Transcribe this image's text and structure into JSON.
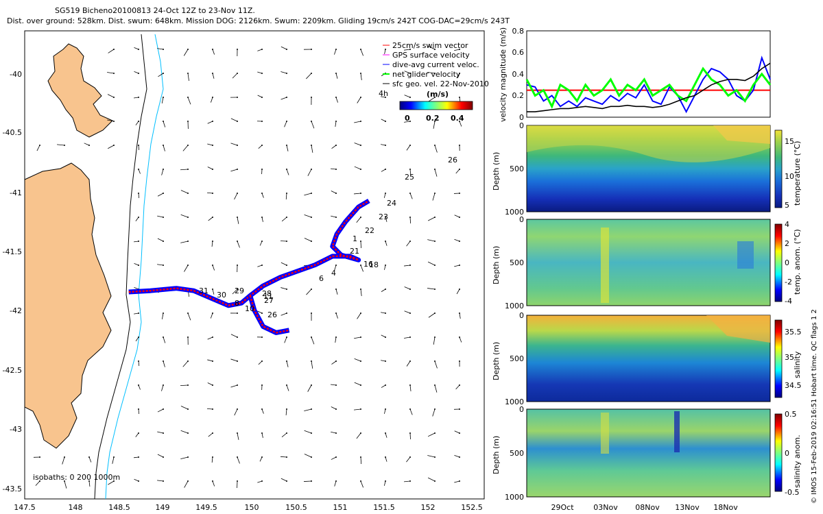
{
  "header": {
    "line1": "SG519 Bicheno20100813 24-Oct 12Z to 23-Nov 11Z.",
    "line2": "Dist. over ground: 528km. Dist. swum: 648km. Mission DOG: 2126km. Swum: 2209km. Gliding 19cm/s 242T COG-DAC=29cm/s 243T"
  },
  "map": {
    "x_ticks": [
      "147.5",
      "148",
      "148.5",
      "149",
      "149.5",
      "150",
      "150.5",
      "151",
      "151.5",
      "152",
      "152.5"
    ],
    "y_ticks": [
      "-40",
      "-40.5",
      "-41",
      "-41.5",
      "-42",
      "-42.5",
      "-43",
      "-43.5"
    ],
    "legend": [
      {
        "label": "25cm/s swim vector",
        "color": "#ff0000"
      },
      {
        "label": "GPS surface velocity",
        "color": "#ff00ff"
      },
      {
        "label": "dive-avg current veloc.",
        "color": "#0000ff"
      },
      {
        "label": "net glider velocity",
        "color": "#00ff00"
      },
      {
        "label": "sfc geo. vel. 22-Nov-2010",
        "color": "#000000"
      }
    ],
    "colorbar": {
      "title": "(m/s)",
      "tick_labels": [
        "0",
        "0.2",
        "0.4"
      ]
    },
    "arrow_scale_label": "4h",
    "isobath_label": "isobaths: 0  200  1000m",
    "day_labels": [
      "6",
      "4",
      "21",
      "22",
      "23",
      "24",
      "25",
      "26",
      "27",
      "28",
      "29",
      "30",
      "31",
      "8",
      "10",
      "11",
      "16",
      "18",
      "26",
      "1"
    ]
  },
  "velocity_panel": {
    "ylabel": "velocity magnitude (m/s)",
    "y_ticks": [
      "0",
      "0.2",
      "0.4",
      "0.6",
      "0.8"
    ],
    "ylim": [
      0,
      0.8
    ]
  },
  "sections": [
    {
      "id": "temperature",
      "ylabel": "Depth (m)",
      "cbar_label": "temperature (°C)",
      "y_ticks": [
        "0",
        "500",
        "1000"
      ],
      "cbar_ticks": [
        "15",
        "10",
        "5"
      ]
    },
    {
      "id": "temp_anom",
      "ylabel": "Depth (m)",
      "cbar_label": "temp. anom. (°C)",
      "y_ticks": [
        "0",
        "500",
        "1000"
      ],
      "cbar_ticks": [
        "4",
        "2",
        "0",
        "-2",
        "-4"
      ]
    },
    {
      "id": "salinity",
      "ylabel": "Depth (m)",
      "cbar_label": "salinity",
      "y_ticks": [
        "0",
        "500",
        "1000"
      ],
      "cbar_ticks": [
        "35.5",
        "35",
        "34.5"
      ]
    },
    {
      "id": "sal_anom",
      "ylabel": "Depth (m)",
      "cbar_label": "salinity anom.",
      "y_ticks": [
        "0",
        "500",
        "1000"
      ],
      "cbar_ticks": [
        "0.5",
        "0",
        "-0.5"
      ]
    }
  ],
  "time_axis": {
    "labels": [
      "29Oct",
      "03Nov",
      "08Nov",
      "13Nov",
      "18Nov"
    ]
  },
  "footer": "© IMOS 15-Feb-2019 02:16:51 Hobart time. QC flags 1 2",
  "chart_data": [
    {
      "type": "line",
      "title": "glider track map",
      "xlabel": "Longitude",
      "ylabel": "Latitude",
      "xlim": [
        147.45,
        152.75
      ],
      "ylim": [
        -43.55,
        -39.75
      ],
      "series": [
        {
          "name": "glider track",
          "points": [
            [
              148.65,
              -41.87
            ],
            [
              148.9,
              -41.86
            ],
            [
              149.2,
              -41.84
            ],
            [
              149.4,
              -41.86
            ],
            [
              149.6,
              -41.92
            ],
            [
              149.8,
              -41.98
            ],
            [
              149.95,
              -41.96
            ],
            [
              150.05,
              -41.9
            ],
            [
              150.2,
              -41.82
            ],
            [
              150.4,
              -41.75
            ],
            [
              150.6,
              -41.7
            ],
            [
              150.8,
              -41.65
            ],
            [
              151.0,
              -41.58
            ],
            [
              151.2,
              -41.58
            ],
            [
              151.3,
              -41.61
            ],
            [
              151.1,
              -41.57
            ],
            [
              151.0,
              -41.5
            ],
            [
              151.05,
              -41.4
            ],
            [
              151.15,
              -41.3
            ],
            [
              151.3,
              -41.18
            ],
            [
              151.42,
              -41.13
            ]
          ]
        },
        {
          "name": "southern excursion",
          "points": [
            [
              150.05,
              -41.9
            ],
            [
              150.1,
              -42.02
            ],
            [
              150.2,
              -42.15
            ],
            [
              150.35,
              -42.2
            ],
            [
              150.5,
              -42.18
            ]
          ]
        }
      ]
    },
    {
      "type": "line",
      "title": "velocity magnitude",
      "ylabel": "velocity magnitude (m/s)",
      "ylim": [
        0,
        0.8
      ],
      "series": [
        {
          "name": "25cm/s swim vector",
          "values": [
            0.25,
            0.25,
            0.25,
            0.25,
            0.25,
            0.25,
            0.25,
            0.25,
            0.25,
            0.25,
            0.25,
            0.25,
            0.25,
            0.25,
            0.25,
            0.25,
            0.25,
            0.25,
            0.25,
            0.25,
            0.25,
            0.25,
            0.25,
            0.25,
            0.25,
            0.25,
            0.25,
            0.25,
            0.25,
            0.25
          ]
        },
        {
          "name": "dive-avg current veloc.",
          "values": [
            0.3,
            0.28,
            0.15,
            0.2,
            0.1,
            0.15,
            0.1,
            0.18,
            0.15,
            0.12,
            0.2,
            0.15,
            0.22,
            0.18,
            0.3,
            0.15,
            0.12,
            0.28,
            0.2,
            0.05,
            0.2,
            0.35,
            0.45,
            0.42,
            0.35,
            0.2,
            0.15,
            0.25,
            0.55,
            0.35
          ]
        },
        {
          "name": "net glider velocity",
          "values": [
            0.35,
            0.2,
            0.25,
            0.1,
            0.3,
            0.25,
            0.15,
            0.3,
            0.2,
            0.25,
            0.35,
            0.2,
            0.3,
            0.25,
            0.35,
            0.2,
            0.25,
            0.3,
            0.2,
            0.15,
            0.3,
            0.45,
            0.35,
            0.3,
            0.2,
            0.25,
            0.15,
            0.3,
            0.4,
            0.3
          ]
        },
        {
          "name": "sfc geo. vel.",
          "values": [
            0.05,
            0.05,
            0.06,
            0.07,
            0.08,
            0.08,
            0.09,
            0.1,
            0.09,
            0.08,
            0.1,
            0.1,
            0.11,
            0.1,
            0.1,
            0.09,
            0.1,
            0.12,
            0.15,
            0.18,
            0.2,
            0.25,
            0.3,
            0.33,
            0.35,
            0.35,
            0.34,
            0.38,
            0.45,
            0.5
          ]
        }
      ]
    }
  ]
}
